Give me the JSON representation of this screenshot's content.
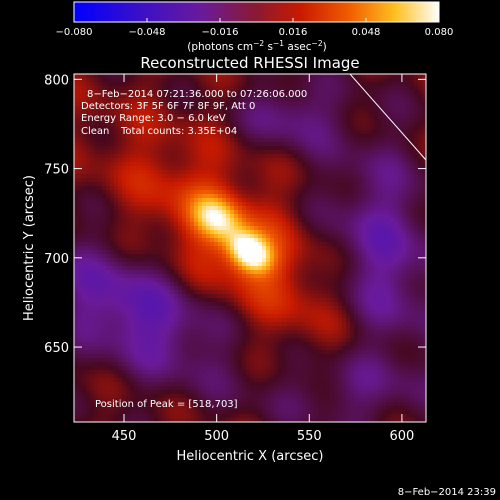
{
  "colorbar": {
    "colormap": "rhessi-inferno",
    "min": -0.08,
    "max": 0.08,
    "tick_labels": [
      "−0.080",
      "−0.048",
      "−0.016",
      "0.016",
      "0.048",
      "0.080"
    ],
    "unit_main": "(photons cm",
    "unit_e1": "−2",
    "unit_mid": " s",
    "unit_e2": "−1",
    "unit_end": " asec",
    "unit_e3": "−2",
    "unit_close": ")"
  },
  "image": {
    "title": "Reconstructed RHESSI Image",
    "info_lines": [
      "8−Feb−2014 07:21:36.000 to 07:26:06.000",
      "Detectors: 3F 5F 6F 7F 8F 9F, Att 0",
      "Energy Range: 3.0 − 6.0 keV"
    ],
    "clean_label": "Clean",
    "total_counts": "Total counts: 3.35E+04",
    "peak_text": "Position of Peak = [518,703]",
    "peak": {
      "x": 518,
      "y": 703
    }
  },
  "axes": {
    "x_label": "Heliocentric X (arcsec)",
    "y_label": "Heliocentric Y (arcsec)",
    "x_range": [
      423,
      613
    ],
    "y_range": [
      608,
      803
    ],
    "x_ticks": [
      {
        "value": 450,
        "label": "450"
      },
      {
        "value": 500,
        "label": "500"
      },
      {
        "value": 550,
        "label": "550"
      },
      {
        "value": 600,
        "label": "600"
      }
    ],
    "y_ticks": [
      {
        "value": 650,
        "label": "650"
      },
      {
        "value": 700,
        "label": "700"
      },
      {
        "value": 750,
        "label": "750"
      },
      {
        "value": 800,
        "label": "800"
      }
    ]
  },
  "footer": {
    "timestamp": "8−Feb−2014 23:39"
  }
}
